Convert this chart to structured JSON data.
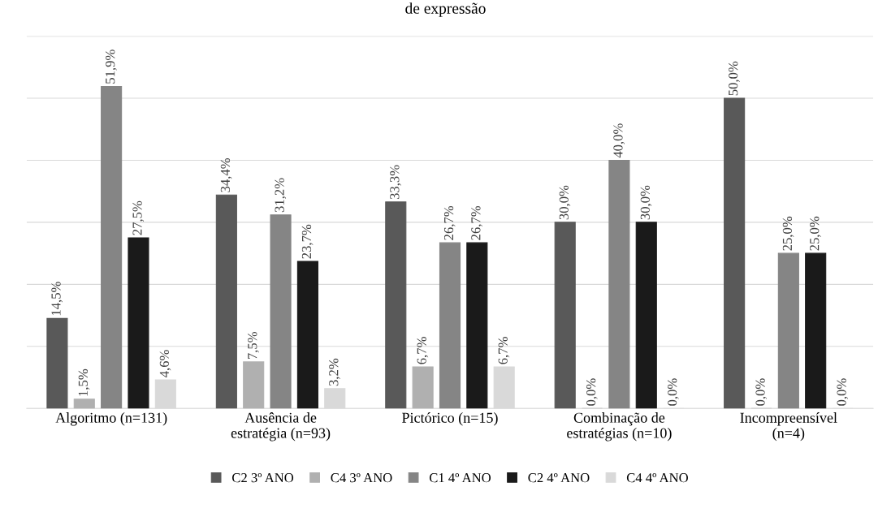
{
  "chart_data": {
    "type": "bar",
    "title": "de expressão",
    "categories": [
      "Algoritmo (n=131)",
      "Ausência de\nestratégia (n=93)",
      "Pictórico (n=15)",
      "Combinação de\nestratégias (n=10)",
      "Incompreensível\n(n=4)"
    ],
    "series": [
      {
        "name": "C2 3º ANO",
        "color": "#595959",
        "values": [
          14.5,
          34.4,
          33.3,
          30.0,
          50.0
        ],
        "value_labels": [
          "14,5%",
          "34,4%",
          "33,3%",
          "30,0%",
          "50,0%"
        ]
      },
      {
        "name": "C4 3º ANO",
        "color": "#b0b0b0",
        "values": [
          1.5,
          7.5,
          6.7,
          0.0,
          0.0
        ],
        "value_labels": [
          "1,5%",
          "7,5%",
          "6,7%",
          "0,0%",
          "0,0%"
        ]
      },
      {
        "name": "C1 4º ANO",
        "color": "#858585",
        "values": [
          51.9,
          31.2,
          26.7,
          40.0,
          25.0
        ],
        "value_labels": [
          "51,9%",
          "31,2%",
          "26,7%",
          "40,0%",
          "25,0%"
        ]
      },
      {
        "name": "C2 4º ANO",
        "color": "#1a1a1a",
        "values": [
          27.5,
          23.7,
          26.7,
          30.0,
          25.0
        ],
        "value_labels": [
          "27,5%",
          "23,7%",
          "26,7%",
          "30,0%",
          "25,0%"
        ]
      },
      {
        "name": "C4 4º ANO",
        "color": "#d9d9d9",
        "values": [
          4.6,
          3.2,
          6.7,
          0.0,
          0.0
        ],
        "value_labels": [
          "4,6%",
          "3,2%",
          "6,7%",
          "0,0%",
          "0,0%"
        ]
      }
    ],
    "ylim": [
      0,
      60
    ],
    "yticks": [
      {
        "value": 0,
        "label": null
      },
      {
        "value": 10,
        "label": null
      },
      {
        "value": 20,
        "label": null
      },
      {
        "value": 30,
        "label": null
      },
      {
        "value": 40,
        "label": null
      },
      {
        "value": 50,
        "label": null
      },
      {
        "value": 60,
        "label": null
      }
    ],
    "tick_labels": "x",
    "grid": "y",
    "legend": "bottom"
  }
}
